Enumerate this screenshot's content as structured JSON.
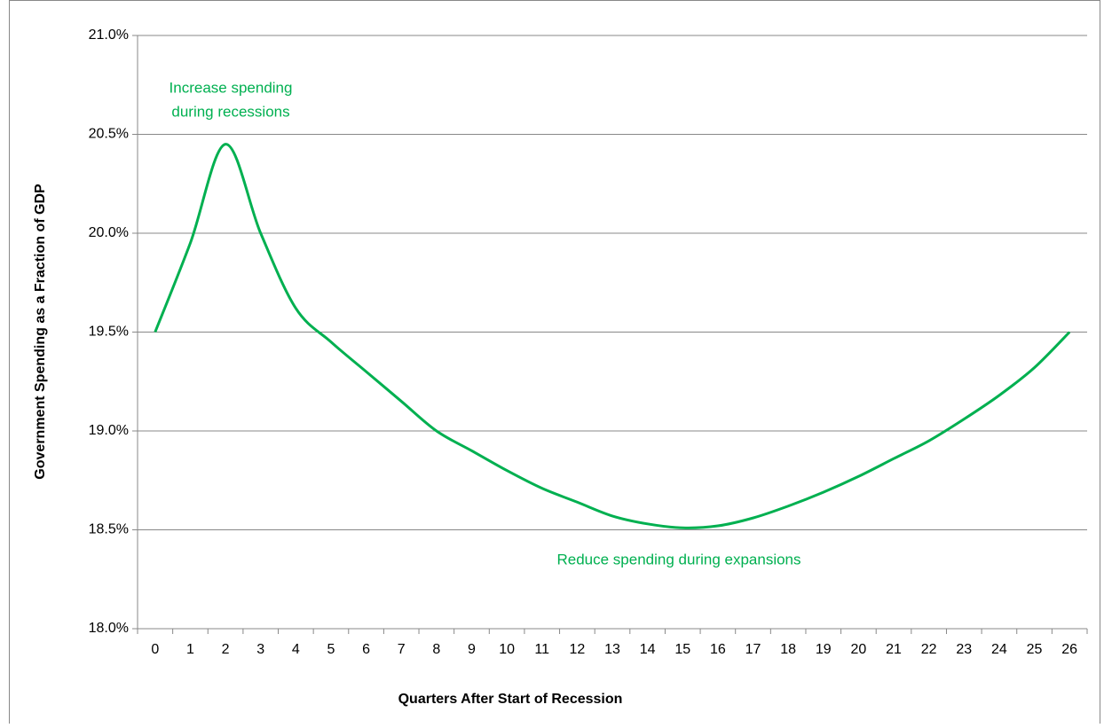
{
  "chart_data": {
    "type": "line",
    "x_label": "Quarters After Start of Recession",
    "y_label": "Government Spending as a Fraction of GDP",
    "categories": [
      "0",
      "1",
      "2",
      "3",
      "4",
      "5",
      "6",
      "7",
      "8",
      "9",
      "10",
      "11",
      "12",
      "13",
      "14",
      "15",
      "16",
      "17",
      "18",
      "19",
      "20",
      "21",
      "22",
      "23",
      "24",
      "25",
      "26"
    ],
    "series": [
      {
        "name": "Government spending",
        "color": "#00b050",
        "values": [
          19.5,
          19.95,
          20.45,
          20.0,
          19.62,
          19.45,
          19.3,
          19.15,
          19.0,
          18.9,
          18.8,
          18.71,
          18.64,
          18.57,
          18.53,
          18.51,
          18.52,
          18.56,
          18.62,
          18.69,
          18.77,
          18.86,
          18.95,
          19.06,
          19.18,
          19.32,
          19.5
        ]
      }
    ],
    "ylim": [
      18,
      21
    ],
    "yticks": [
      {
        "value": 18,
        "label": "18.0%"
      },
      {
        "value": 18.5,
        "label": "18.5%"
      },
      {
        "value": 19,
        "label": "19.0%"
      },
      {
        "value": 19.5,
        "label": "19.5%"
      },
      {
        "value": 20,
        "label": "20.0%"
      },
      {
        "value": 20.5,
        "label": "20.5%"
      },
      {
        "value": 21,
        "label": "21.0%"
      }
    ],
    "grid": true,
    "annotations": [
      [
        "Increase spending",
        "during recessions"
      ],
      [
        "Reduce spending during expansions"
      ]
    ]
  }
}
